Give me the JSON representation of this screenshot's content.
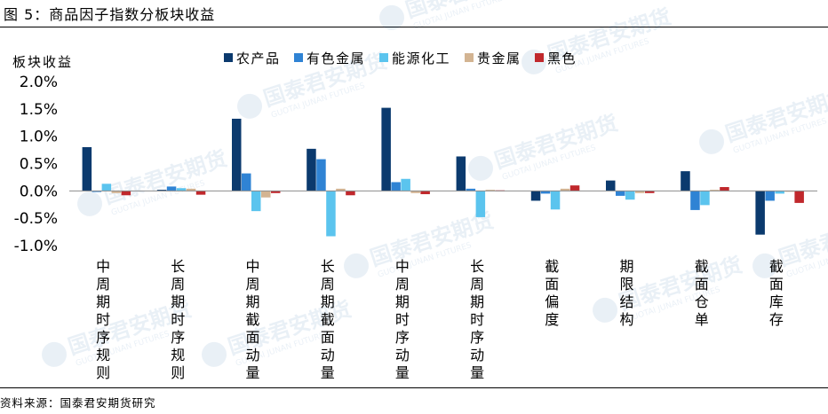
{
  "figure": {
    "title": "图 5：商品因子指数分板块收益",
    "source": "资料来源：国泰君安期货研究",
    "watermark": "国泰君安期货",
    "watermark_sub": "GUOTAI JUNAN FUTURES"
  },
  "chart_data": {
    "type": "bar",
    "ylabel": "板块收益",
    "ylim": [
      -0.01,
      0.02
    ],
    "yticks": [
      0.02,
      0.015,
      0.01,
      0.005,
      0.0,
      -0.005,
      -0.01
    ],
    "ytick_labels": [
      "2.0%",
      "1.5%",
      "1.0%",
      "0.5%",
      "0.0%",
      "-0.5%",
      "-1.0%"
    ],
    "legend_position": "top",
    "categories": [
      "中周期时序规则",
      "长周期时序规则",
      "中周期截面动量",
      "长周期截面动量",
      "中周期时序动量",
      "长周期时序动量",
      "截面偏度",
      "期限结构",
      "截面仓单",
      "截面库存"
    ],
    "series": [
      {
        "name": "农产品",
        "color": "#0b3a6e",
        "values": [
          0.008,
          0.0002,
          0.0132,
          0.0077,
          0.0152,
          0.0063,
          -0.0018,
          0.0019,
          0.0036,
          -0.008
        ]
      },
      {
        "name": "有色金属",
        "color": "#2f83d4",
        "values": [
          -0.0002,
          0.0008,
          0.0032,
          0.0058,
          0.0016,
          0.0004,
          -0.0005,
          -0.0009,
          -0.0035,
          -0.0018
        ]
      },
      {
        "name": "能源化工",
        "color": "#5bc4ee",
        "values": [
          0.0013,
          0.0005,
          -0.0037,
          -0.0083,
          0.0022,
          -0.0048,
          -0.0034,
          -0.0016,
          -0.0026,
          -0.0005
        ]
      },
      {
        "name": "贵金属",
        "color": "#d3b492",
        "values": [
          -0.0004,
          0.0004,
          -0.0012,
          0.0004,
          -0.0004,
          0.0002,
          0.0004,
          -0.0004,
          0.0002,
          0.0
        ]
      },
      {
        "name": "黑色",
        "color": "#c0282c",
        "values": [
          -0.0008,
          -0.0007,
          -0.0004,
          -0.0008,
          -0.0006,
          0.0001,
          0.001,
          -0.0004,
          0.0007,
          -0.0022
        ]
      }
    ]
  }
}
